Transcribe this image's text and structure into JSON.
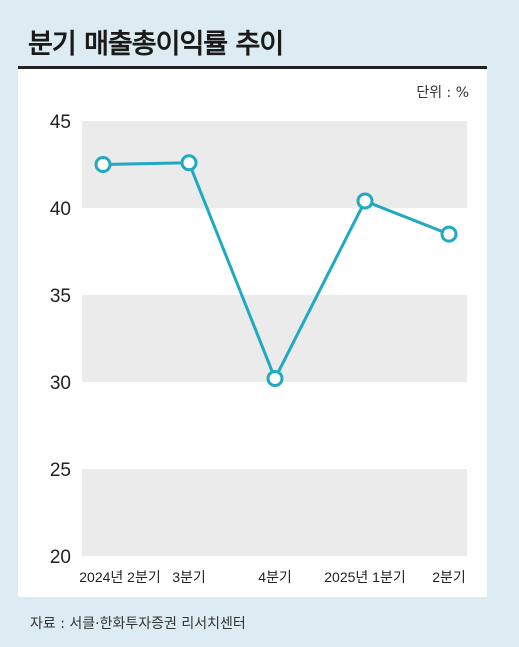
{
  "title": "분기 매출총이익률 추이",
  "unit_label": "단위 : %",
  "source": "자료 : 서클·한화투자증권 리서치센터",
  "colors": {
    "background": "#dcecf2",
    "panel": "#ffffff",
    "band": "#ebebeb",
    "line": "#1fa9c2",
    "title_rule": "#222222"
  },
  "chart_data": {
    "type": "line",
    "title": "분기 매출총이익률 추이",
    "unit": "%",
    "categories": [
      "2024년 2분기",
      "3분기",
      "4분기",
      "2025년 1분기",
      "2분기"
    ],
    "series": [
      {
        "values": [
          42.5,
          42.6,
          30.2,
          40.4,
          38.5
        ]
      }
    ],
    "ylim": [
      20,
      45
    ],
    "yticks": [
      "45",
      "40",
      "35",
      "30",
      "25",
      "20"
    ],
    "grid": "alternating bands",
    "legend": "none",
    "marker": "open circle"
  }
}
